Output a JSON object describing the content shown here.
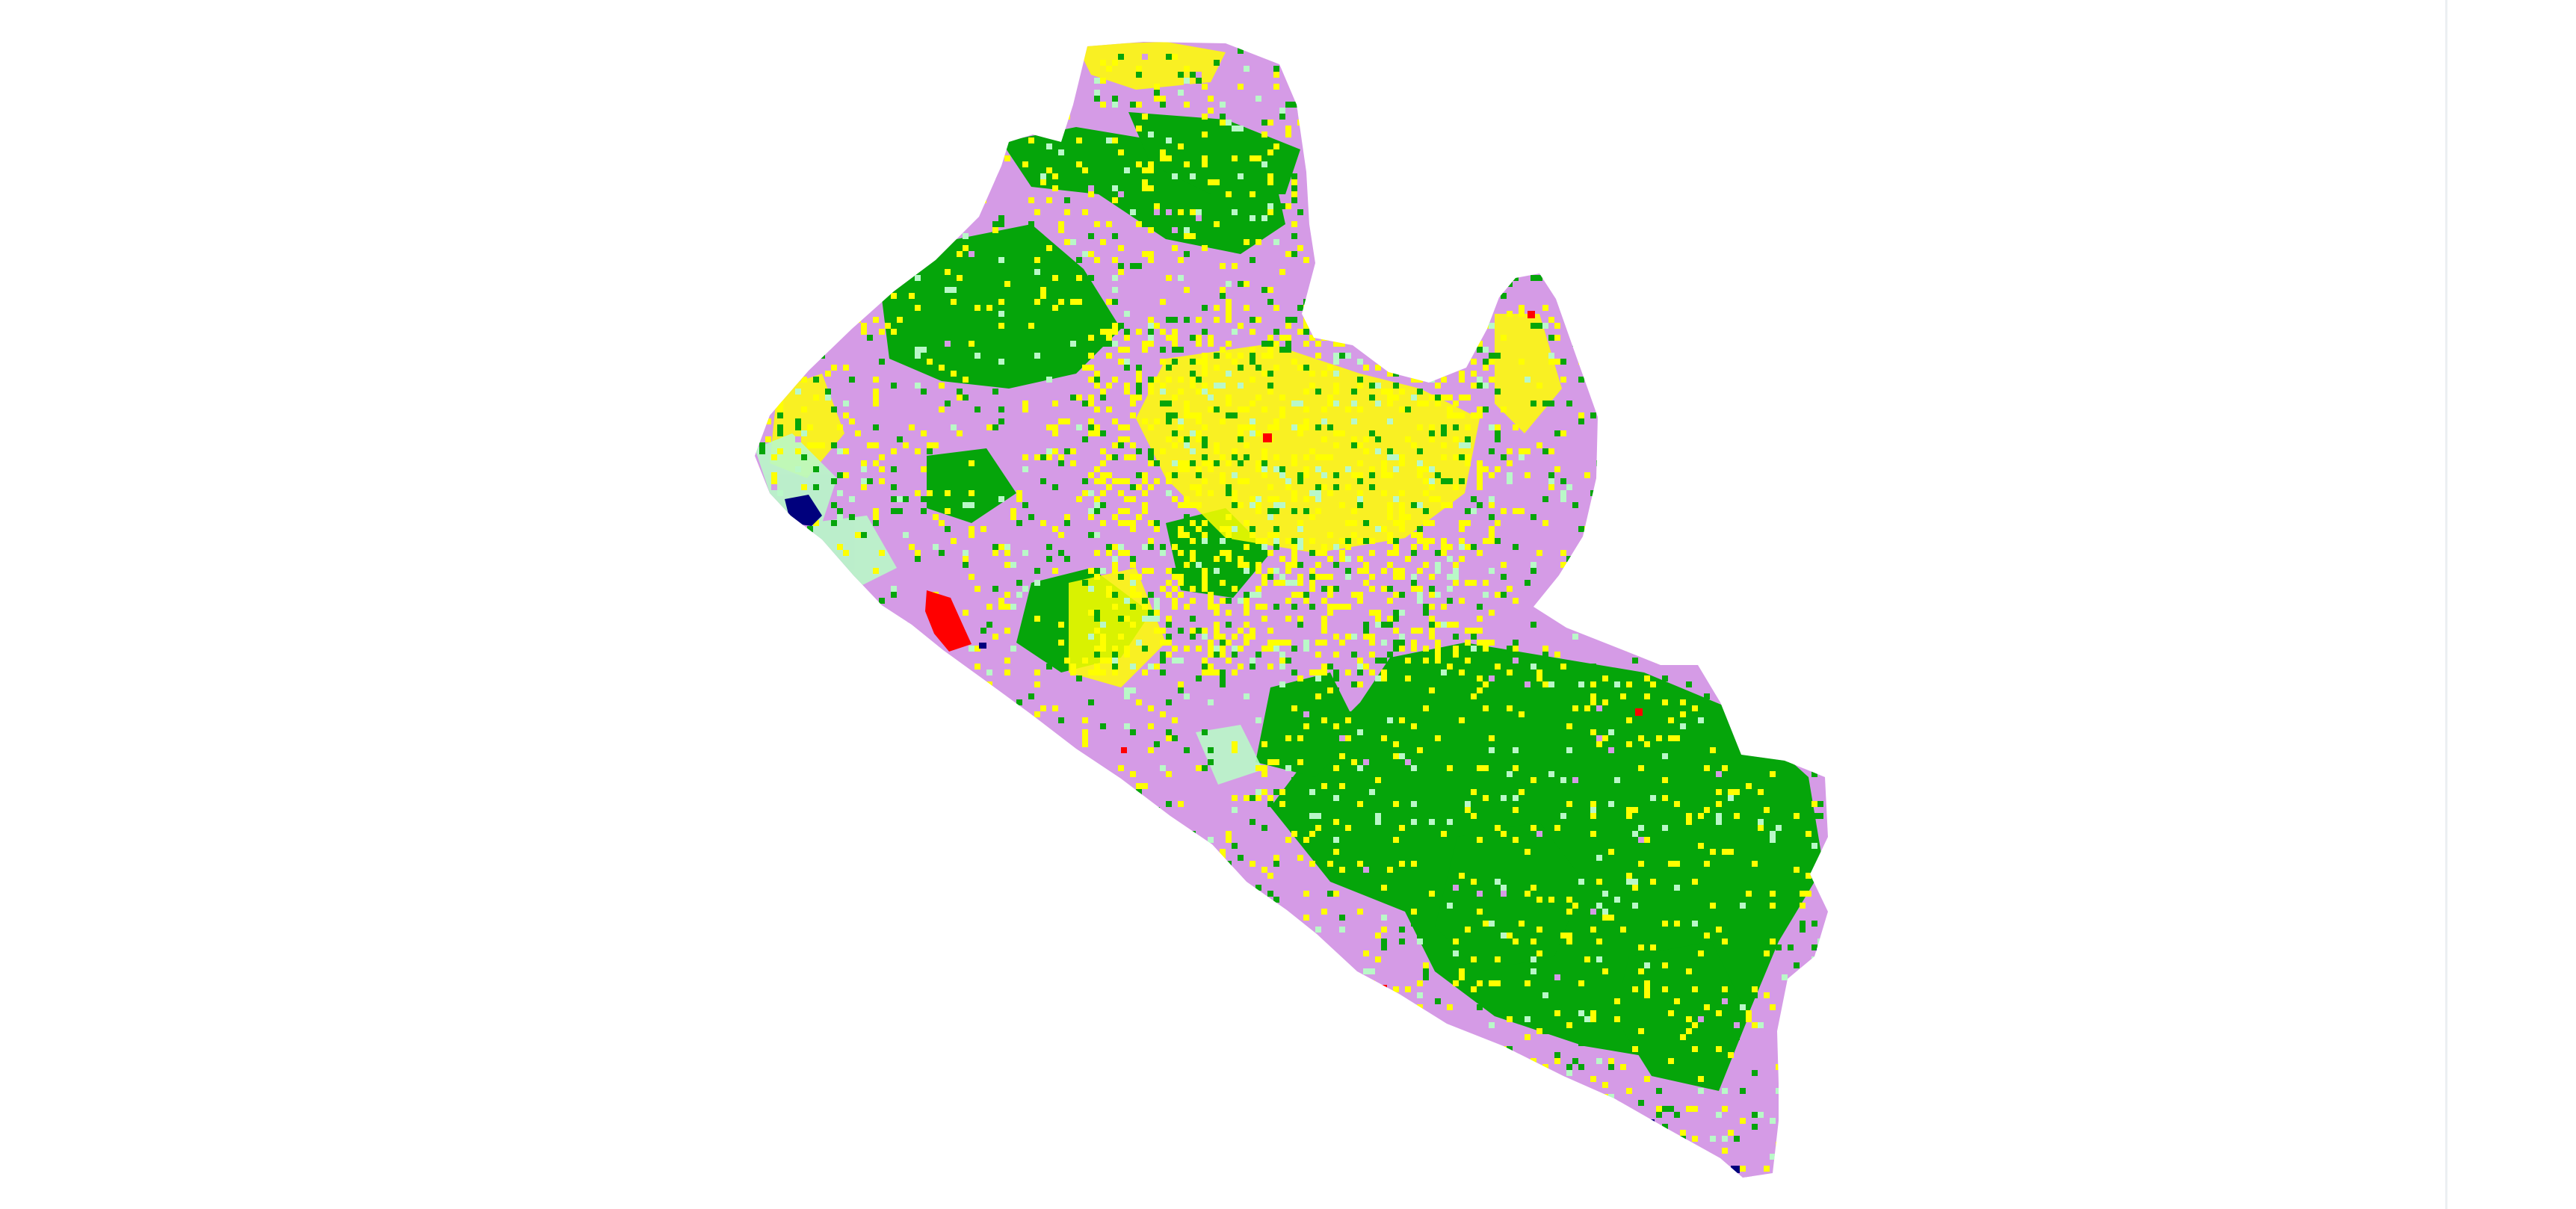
{
  "map": {
    "region": "Liberia",
    "layer": "land-cover-raster",
    "classes": [
      {
        "id": "forest",
        "color": "#05a50a"
      },
      {
        "id": "cropland",
        "color": "#d59be6"
      },
      {
        "id": "grassland",
        "color": "#ffff00"
      },
      {
        "id": "shrubland",
        "color": "#b9f8c8"
      },
      {
        "id": "urban",
        "color": "#ff0000"
      },
      {
        "id": "water",
        "color": "#00007d"
      }
    ],
    "background_color": "#ffffff"
  }
}
